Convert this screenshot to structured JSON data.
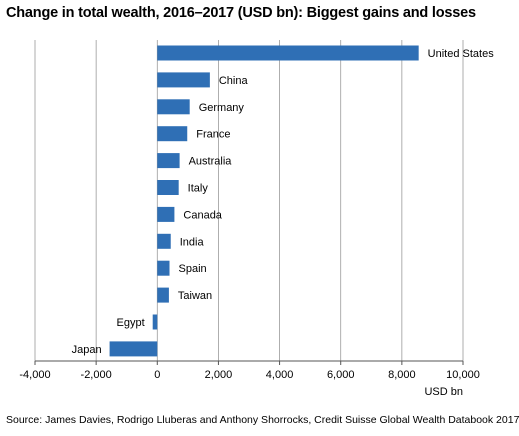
{
  "title": "Change in total wealth, 2016–2017 (USD bn): Biggest gains and losses",
  "source": "Source: James Davies, Rodrigo Lluberas and Anthony Shorrocks, Credit Suisse Global Wealth Databook 2017",
  "colors": {
    "bar": "#2f6fb5",
    "grid": "#9a9a9a",
    "axis": "#555555"
  },
  "chart_data": {
    "type": "bar",
    "orientation": "horizontal",
    "categories": [
      "United States",
      "China",
      "Germany",
      "France",
      "Australia",
      "Italy",
      "Canada",
      "India",
      "Spain",
      "Taiwan",
      "Egypt",
      "Japan"
    ],
    "values": [
      8550,
      1720,
      1060,
      980,
      730,
      700,
      560,
      440,
      400,
      380,
      -150,
      -1560
    ],
    "xlabel": "USD bn",
    "xlim": [
      -4000,
      10000
    ],
    "xticks": [
      -4000,
      -2000,
      0,
      2000,
      4000,
      6000,
      8000,
      10000
    ],
    "xtick_labels": [
      "-4,000",
      "-2,000",
      "0",
      "2,000",
      "4,000",
      "6,000",
      "8,000",
      "10,000"
    ],
    "grid": "vertical",
    "legend": "none"
  }
}
